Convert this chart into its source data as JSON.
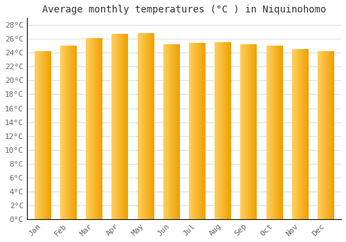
{
  "months": [
    "Jan",
    "Feb",
    "Mar",
    "Apr",
    "May",
    "Jun",
    "Jul",
    "Aug",
    "Sep",
    "Oct",
    "Nov",
    "Dec"
  ],
  "values": [
    24.2,
    25.0,
    26.1,
    26.7,
    26.8,
    25.2,
    25.4,
    25.5,
    25.2,
    25.0,
    24.5,
    24.2
  ],
  "bar_color_light": "#FFD060",
  "bar_color_dark": "#F0A000",
  "background_color": "#FFFFFF",
  "grid_color": "#DDDDDD",
  "title": "Average monthly temperatures (°C ) in Niquinohomo",
  "title_fontsize": 10,
  "tick_fontsize": 8,
  "ylim": [
    0,
    29
  ],
  "yticks": [
    0,
    2,
    4,
    6,
    8,
    10,
    12,
    14,
    16,
    18,
    20,
    22,
    24,
    26,
    28
  ]
}
